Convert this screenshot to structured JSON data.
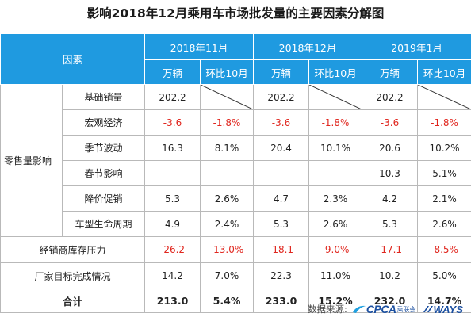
{
  "title": "影响2018年12月乘用车市场批发量的主要因素分解图",
  "header": {
    "factor_label": "因素",
    "periods": [
      "2018年11月",
      "2018年12月",
      "2019年1月"
    ],
    "unit_label": "万辆",
    "mom_label": "环比10月"
  },
  "group_label": "零售量影响",
  "rows": [
    {
      "label": "基础销量",
      "cells": [
        "202.2",
        "",
        "202.2",
        "",
        "202.2",
        ""
      ]
    },
    {
      "label": "宏观经济",
      "cells": [
        "-3.6",
        "-1.8%",
        "-3.6",
        "-1.8%",
        "-3.6",
        "-1.8%"
      ]
    },
    {
      "label": "季节波动",
      "cells": [
        "16.3",
        "8.1%",
        "20.4",
        "10.1%",
        "20.6",
        "10.2%"
      ]
    },
    {
      "label": "春节影响",
      "cells": [
        "-",
        "-",
        "-",
        "-",
        "10.3",
        "5.1%"
      ]
    },
    {
      "label": "降价促销",
      "cells": [
        "5.3",
        "2.6%",
        "4.7",
        "2.3%",
        "4.2",
        "2.1%"
      ]
    },
    {
      "label": "车型生命周期",
      "cells": [
        "4.9",
        "2.4%",
        "5.3",
        "2.6%",
        "5.3",
        "2.6%"
      ]
    }
  ],
  "misc_rows": [
    {
      "label": "经销商库存压力",
      "cells": [
        "-26.2",
        "-13.0%",
        "-18.1",
        "-9.0%",
        "-17.1",
        "-8.5%"
      ]
    },
    {
      "label": "厂家目标完成情况",
      "cells": [
        "14.2",
        "7.0%",
        "22.3",
        "11.0%",
        "10.2",
        "5.0%"
      ]
    }
  ],
  "total": {
    "label": "合计",
    "cells": [
      "213.0",
      "5.4%",
      "233.0",
      "15.2%",
      "232.0",
      "14.7%"
    ]
  },
  "source": {
    "label": "数据来源:",
    "logo1": "CPCA",
    "logo1_sub": "乘联会",
    "logo2": "WAYS"
  },
  "colors": {
    "header_bg": "#1f9ae0",
    "negative": "#e0261e",
    "logo": "#1b4fa0"
  }
}
